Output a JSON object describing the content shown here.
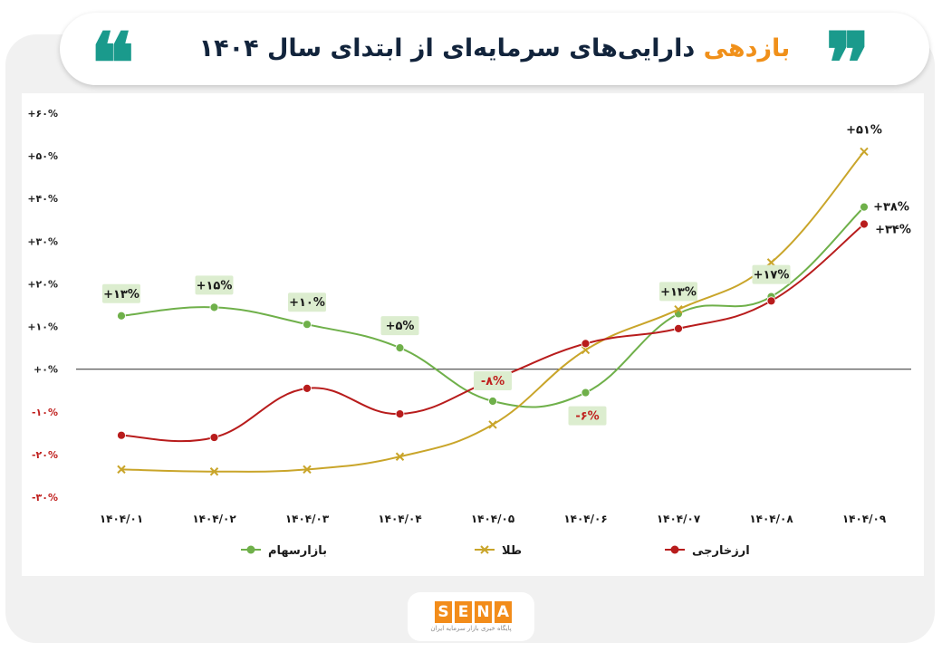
{
  "header": {
    "title_accent": "بازدهی",
    "title_rest": "دارایی‌های سرمایه‌ای از ابتدای سال ۱۴۰۴",
    "quote_open": "❝",
    "quote_close": "❞",
    "quote_color": "#1a9a8c",
    "accent_color": "#f0901a",
    "title_color": "#12243c"
  },
  "chart_data": {
    "type": "line",
    "categories": [
      "۱۴۰۴/۰۱",
      "۱۴۰۴/۰۲",
      "۱۴۰۴/۰۳",
      "۱۴۰۴/۰۴",
      "۱۴۰۴/۰۵",
      "۱۴۰۴/۰۶",
      "۱۴۰۴/۰۷",
      "۱۴۰۴/۰۸",
      "۱۴۰۴/۰۹"
    ],
    "ylim": [
      -30,
      60
    ],
    "yticks": [
      {
        "value": 60,
        "label": "+۶۰%"
      },
      {
        "value": 50,
        "label": "+۵۰%"
      },
      {
        "value": 40,
        "label": "+۴۰%"
      },
      {
        "value": 30,
        "label": "+۳۰%"
      },
      {
        "value": 20,
        "label": "+۲۰%"
      },
      {
        "value": 10,
        "label": "+۱۰%"
      },
      {
        "value": 0,
        "label": "+۰%"
      },
      {
        "value": -10,
        "label": "-۱۰%"
      },
      {
        "value": -20,
        "label": "-۲۰%"
      },
      {
        "value": -30,
        "label": "-۳۰%"
      }
    ],
    "zero_line": true,
    "grid": false,
    "legend_position": "bottom",
    "series": [
      {
        "name": "بازارسهام",
        "color": "#6fb04a",
        "marker": "circle",
        "values": [
          12.5,
          14.5,
          10.5,
          5,
          -7.5,
          -5.5,
          13,
          17,
          38
        ]
      },
      {
        "name": "طلا",
        "color": "#c9a52a",
        "marker": "x",
        "values": [
          -23.5,
          -24,
          -23.5,
          -20.5,
          -13,
          4.5,
          14,
          25,
          51
        ]
      },
      {
        "name": "ارزخارجی",
        "color": "#b81c1c",
        "marker": "circle",
        "values": [
          -15.5,
          -16,
          -4.5,
          -10.5,
          -2.5,
          6,
          9.5,
          16,
          34
        ]
      }
    ],
    "annotations": [
      {
        "series": 0,
        "index": 0,
        "text": "+۱۳%",
        "box": true,
        "text_color": "#1a1a1a"
      },
      {
        "series": 0,
        "index": 1,
        "text": "+۱۵%",
        "box": true,
        "text_color": "#1a1a1a"
      },
      {
        "series": 0,
        "index": 2,
        "text": "+۱۰%",
        "box": true,
        "text_color": "#1a1a1a"
      },
      {
        "series": 0,
        "index": 3,
        "text": "+۵%",
        "box": true,
        "text_color": "#1a1a1a"
      },
      {
        "series": 0,
        "index": 4,
        "text": "-۸%",
        "box": true,
        "text_color": "#c0201e"
      },
      {
        "series": 0,
        "index": 5,
        "text": "-۶%",
        "box": true,
        "text_color": "#c0201e"
      },
      {
        "series": 0,
        "index": 6,
        "text": "+۱۳%",
        "box": true,
        "text_color": "#1a1a1a"
      },
      {
        "series": 0,
        "index": 7,
        "text": "+۱۷%",
        "box": true,
        "text_color": "#1a1a1a"
      },
      {
        "series": 0,
        "index": 8,
        "text": "+۳۸%",
        "box": false,
        "text_color": "#1a1a1a"
      },
      {
        "series": 1,
        "index": 8,
        "text": "+۵۱%",
        "box": false,
        "text_color": "#1a1a1a"
      },
      {
        "series": 2,
        "index": 8,
        "text": "+۳۴%",
        "box": false,
        "text_color": "#1a1a1a"
      }
    ]
  },
  "footer": {
    "logo_letters": [
      "S",
      "E",
      "N",
      "A"
    ],
    "logo_color": "#f28c1a",
    "logo_sub": "پایگاه خبری بازار سرمایه ایران"
  }
}
